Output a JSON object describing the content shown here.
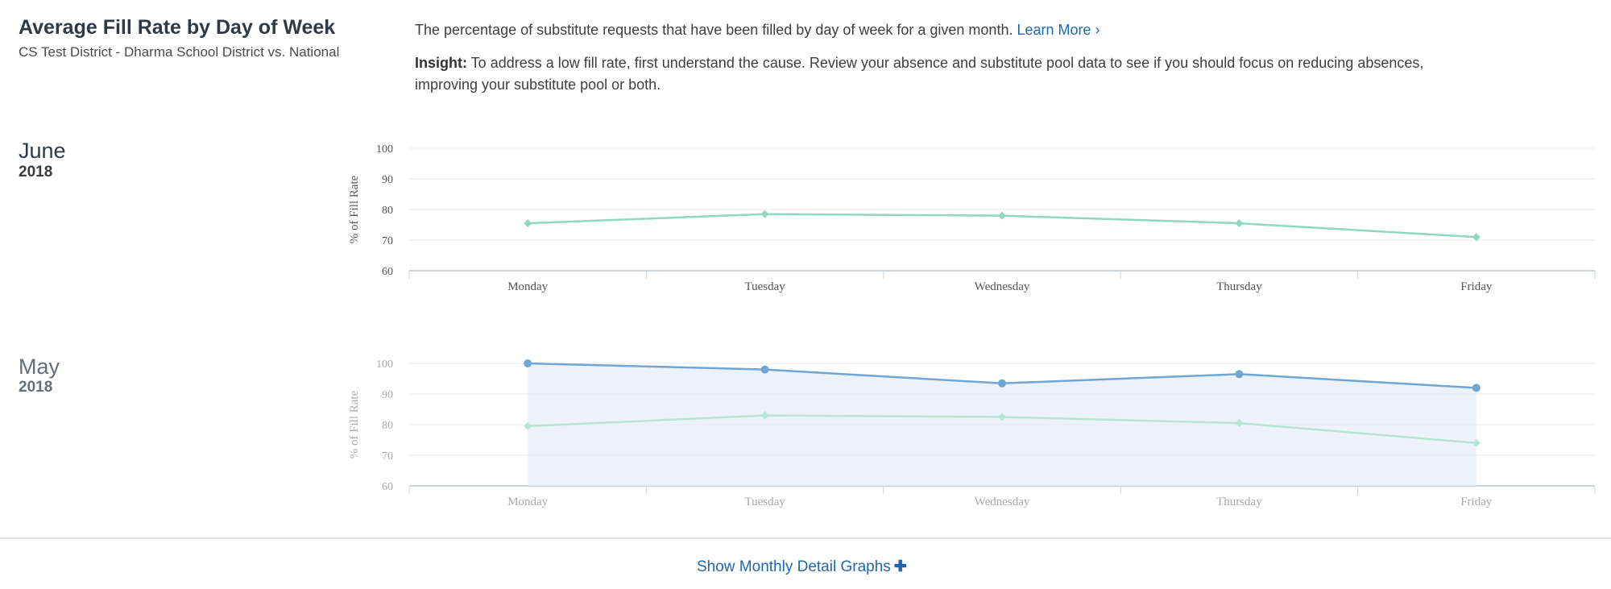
{
  "header": {
    "title": "Average Fill Rate by Day of Week",
    "subtitle": "CS Test District - Dharma School District vs. National",
    "description": "The percentage of substitute requests that have been filled by day of week for a given month.",
    "learn_more": "Learn More ›",
    "insight_label": "Insight:",
    "insight_text": " To address a low fill rate, first understand the cause. Review your absence and substitute pool data to see if you should focus on reducing absences, improving your substitute pool or both."
  },
  "months": [
    {
      "month": "June",
      "year": "2018"
    },
    {
      "month": "May",
      "year": "2018"
    }
  ],
  "colors": {
    "district": "#6fa6d6",
    "district_area": "#e8eef7",
    "national": "#8fd8bd",
    "national_faded": "#b5e5d3",
    "axis_text": "#555555",
    "axis_text_faded": "#aaaaaa",
    "grid": "#e6e8ec",
    "link": "#1f67ad"
  },
  "chart_data": [
    {
      "type": "line",
      "categories": [
        "Monday",
        "Tuesday",
        "Wednesday",
        "Thursday",
        "Friday"
      ],
      "ylabel": "% of Fill Rate",
      "ylim": [
        60,
        100
      ],
      "yticks": [
        60,
        70,
        80,
        90,
        100
      ],
      "faded": false,
      "series": [
        {
          "key": "national",
          "values": [
            75.5,
            78.5,
            78,
            75.5,
            71
          ]
        }
      ]
    },
    {
      "type": "line",
      "categories": [
        "Monday",
        "Tuesday",
        "Wednesday",
        "Thursday",
        "Friday"
      ],
      "ylabel": "% of Fill Rate",
      "ylim": [
        60,
        100
      ],
      "yticks": [
        60,
        70,
        80,
        90,
        100
      ],
      "faded": true,
      "series": [
        {
          "key": "district",
          "values": [
            100,
            98,
            93.5,
            96.5,
            92
          ]
        },
        {
          "key": "national",
          "values": [
            79.5,
            83,
            82.5,
            80.5,
            74
          ]
        }
      ]
    }
  ],
  "footer": {
    "show_more": "Show Monthly Detail Graphs",
    "plus": "✚"
  }
}
